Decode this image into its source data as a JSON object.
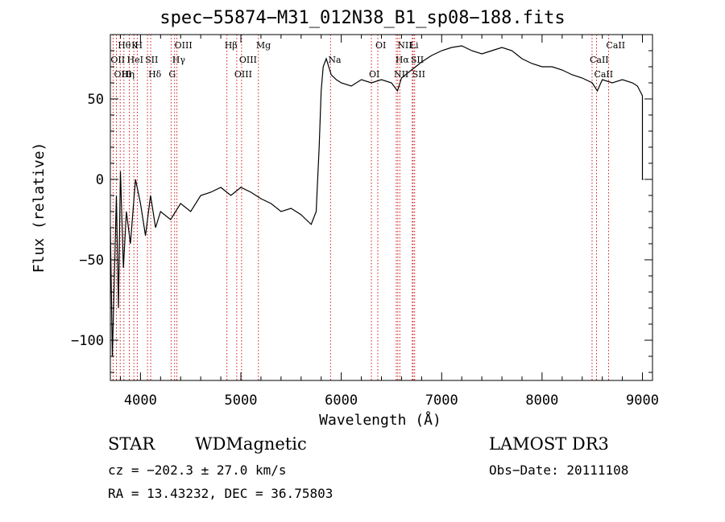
{
  "chart_data": {
    "type": "line",
    "title": "spec−55874−M31_012N38_B1_sp08−188.fits",
    "xlabel": "Wavelength (Å)",
    "ylabel": "Flux (relative)",
    "xlim": [
      3700,
      9100
    ],
    "ylim": [
      -125,
      90
    ],
    "xticks": [
      4000,
      5000,
      6000,
      7000,
      8000,
      9000
    ],
    "xtick_labels": [
      "4000",
      "5000",
      "6000",
      "7000",
      "8000",
      "9000"
    ],
    "yticks": [
      -100,
      -50,
      0,
      50
    ],
    "ytick_labels": [
      "−100",
      "−50",
      "0",
      "50"
    ],
    "line_color": "#000000",
    "marker_color": "#cc0000",
    "series": [
      {
        "name": "spectrum",
        "x": [
          3700,
          3720,
          3740,
          3760,
          3780,
          3800,
          3830,
          3860,
          3900,
          3950,
          4000,
          4050,
          4100,
          4150,
          4200,
          4300,
          4400,
          4500,
          4600,
          4700,
          4800,
          4900,
          5000,
          5100,
          5200,
          5300,
          5400,
          5500,
          5600,
          5650,
          5700,
          5750,
          5780,
          5800,
          5820,
          5850,
          5900,
          5950,
          6000,
          6100,
          6200,
          6300,
          6400,
          6500,
          6560,
          6600,
          6700,
          6800,
          6900,
          7000,
          7100,
          7200,
          7300,
          7400,
          7500,
          7600,
          7700,
          7800,
          7900,
          8000,
          8100,
          8200,
          8300,
          8400,
          8500,
          8550,
          8600,
          8700,
          8800,
          8900,
          8950,
          9000,
          9000,
          9010
        ],
        "y": [
          -30,
          -110,
          -60,
          -10,
          -80,
          5,
          -55,
          -20,
          -40,
          0,
          -15,
          -35,
          -10,
          -30,
          -20,
          -25,
          -15,
          -20,
          -10,
          -8,
          -5,
          -10,
          -5,
          -8,
          -12,
          -15,
          -20,
          -18,
          -22,
          -25,
          -28,
          -20,
          20,
          55,
          70,
          75,
          65,
          62,
          60,
          58,
          62,
          60,
          62,
          60,
          55,
          63,
          68,
          73,
          77,
          80,
          82,
          83,
          80,
          78,
          80,
          82,
          80,
          75,
          72,
          70,
          70,
          68,
          65,
          63,
          60,
          55,
          62,
          60,
          62,
          60,
          58,
          52,
          0,
          0
        ]
      }
    ],
    "lines": [
      {
        "label": "Hθ",
        "x": 3798
      },
      {
        "label": "OII",
        "x": 3727
      },
      {
        "label": "OIII",
        "x": 3760
      },
      {
        "label": "K",
        "x": 3934
      },
      {
        "label": "HeI",
        "x": 3889
      },
      {
        "label": "Hη",
        "x": 3835
      },
      {
        "label": "H",
        "x": 3968
      },
      {
        "label": "SII",
        "x": 4070
      },
      {
        "label": "Hδ",
        "x": 4102
      },
      {
        "label": "OIII",
        "x": 4363
      },
      {
        "label": "Hγ",
        "x": 4340
      },
      {
        "label": "G",
        "x": 4305
      },
      {
        "label": "Hβ",
        "x": 4861
      },
      {
        "label": "OIII",
        "x": 5007
      },
      {
        "label": "OIII",
        "x": 4959
      },
      {
        "label": "Mg",
        "x": 5175
      },
      {
        "label": "Na",
        "x": 5893
      },
      {
        "label": "OI",
        "x": 6300
      },
      {
        "label": "OI",
        "x": 6364
      },
      {
        "label": "Hα",
        "x": 6563
      },
      {
        "label": "NII",
        "x": 6548
      },
      {
        "label": "NII",
        "x": 6583
      },
      {
        "label": "SII",
        "x": 6716
      },
      {
        "label": "SII",
        "x": 6731
      },
      {
        "label": "Li",
        "x": 6707
      },
      {
        "label": "CaII",
        "x": 8498
      },
      {
        "label": "CaII",
        "x": 8542
      },
      {
        "label": "CaII",
        "x": 8662
      }
    ]
  },
  "info": {
    "obj_class": "STAR",
    "subclass": "WDMagnetic",
    "survey": "LAMOST DR3",
    "cz": "cz = −202.3 ± 27.0 km/s",
    "obs_date": "Obs−Date: 20111108",
    "coords": "RA =  13.43232, DEC =  36.75803"
  }
}
